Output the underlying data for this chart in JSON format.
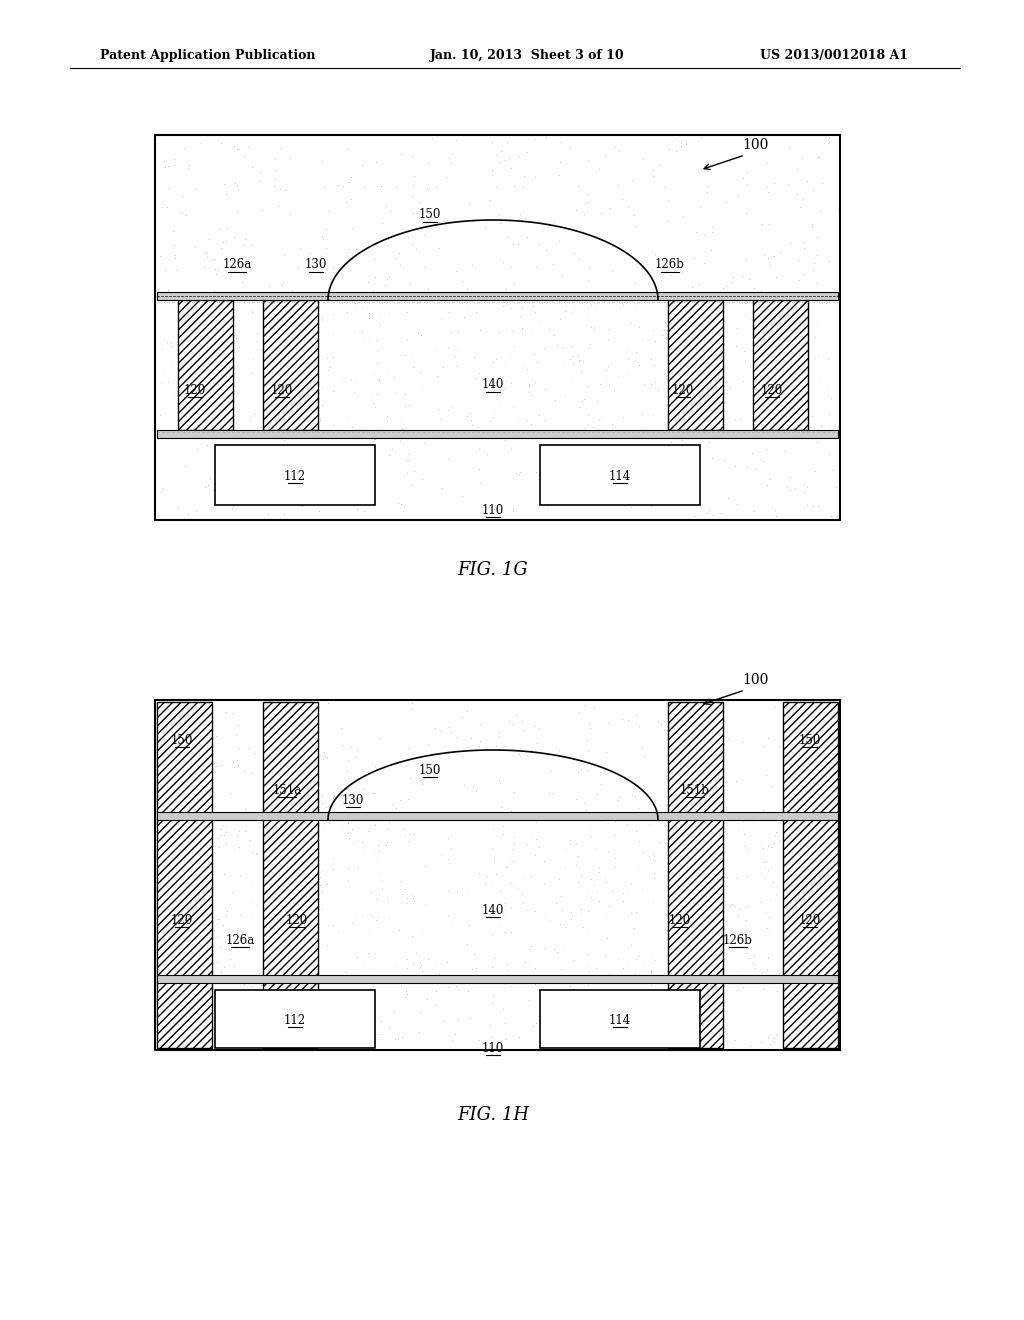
{
  "bg_color": "#ffffff",
  "header_left": "Patent Application Publication",
  "header_center": "Jan. 10, 2013  Sheet 3 of 10",
  "header_right": "US 2013/0012018 A1",
  "fig1g_label": "FIG. 1G",
  "fig1h_label": "FIG. 1H",
  "ref100": "100",
  "ref110_1g": "110",
  "ref112_1g": "112",
  "ref114_1g": "114",
  "ref120_1g": "120",
  "ref126a_1g": "126a",
  "ref126b_1g": "126b",
  "ref130_1g": "130",
  "ref140_1g": "140",
  "ref150_1g": "150",
  "ref110_1h": "110",
  "ref112_1h": "112",
  "ref114_1h": "114",
  "ref120_1h": "120",
  "ref126a_1h": "126a",
  "ref126b_1h": "126b",
  "ref130_1h": "130",
  "ref140_1h": "140",
  "ref150_1h": "150",
  "ref151a_1h": "151a",
  "ref151b_1h": "151b"
}
